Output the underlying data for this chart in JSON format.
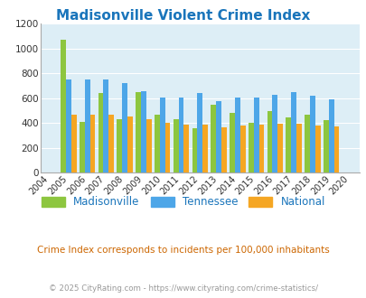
{
  "title": "Madisonville Violent Crime Index",
  "years": [
    2004,
    2005,
    2006,
    2007,
    2008,
    2009,
    2010,
    2011,
    2012,
    2013,
    2014,
    2015,
    2016,
    2017,
    2018,
    2019,
    2020
  ],
  "madisonville": [
    null,
    1075,
    410,
    640,
    435,
    650,
    470,
    435,
    360,
    550,
    480,
    402,
    498,
    445,
    465,
    425,
    null
  ],
  "tennessee": [
    null,
    755,
    755,
    755,
    725,
    660,
    608,
    608,
    642,
    578,
    608,
    608,
    632,
    648,
    620,
    595,
    null
  ],
  "national": [
    null,
    469,
    469,
    465,
    455,
    432,
    400,
    390,
    390,
    370,
    383,
    390,
    395,
    397,
    378,
    375,
    null
  ],
  "color_madisonville": "#8dc63f",
  "color_tennessee": "#4da6e8",
  "color_national": "#f5a623",
  "bg_color": "#ddeef6",
  "grid_color": "#ffffff",
  "ylabel_vals": [
    0,
    200,
    400,
    600,
    800,
    1000,
    1200
  ],
  "ylim": [
    0,
    1200
  ],
  "subtitle": "Crime Index corresponds to incidents per 100,000 inhabitants",
  "footer": "© 2025 CityRating.com - https://www.cityrating.com/crime-statistics/",
  "title_color": "#1a75bb",
  "subtitle_color": "#cc6600",
  "footer_color": "#999999"
}
